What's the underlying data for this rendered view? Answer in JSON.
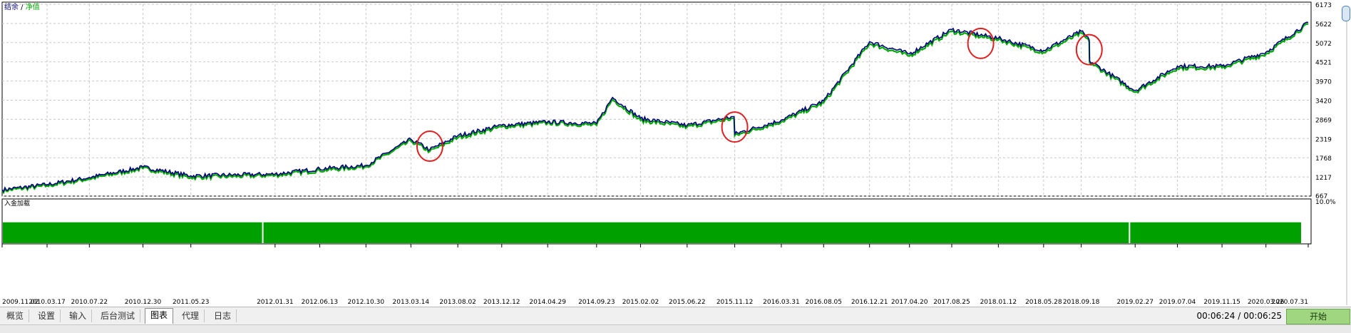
{
  "legend": {
    "balance_label": "结余",
    "separator": " / ",
    "equity_label": "净值"
  },
  "sub_panel": {
    "label": "入金加载",
    "top_value": "10.0%"
  },
  "colors": {
    "balance": "#000080",
    "equity": "#00aa00",
    "deposit_load": "#00a000",
    "circle": "#e02020"
  },
  "chart_data": [
    {
      "type": "line",
      "title": "",
      "series": [
        {
          "name": "结余",
          "color": "#000080",
          "x": [
            "2009.11.02",
            "2010.03.17",
            "2010.07.22",
            "2010.12.30",
            "2011.05.23",
            "2012.01.31",
            "2012.06.13",
            "2012.10.30",
            "2013.03.14",
            "2013.05.10",
            "2013.08.02",
            "2013.12.12",
            "2014.04.29",
            "2014.09.23",
            "2014.11.10",
            "2015.02.02",
            "2015.06.22",
            "2015.11.10",
            "2015.11.12",
            "2016.03.31",
            "2016.08.05",
            "2016.12.21",
            "2017.04.20",
            "2017.08.25",
            "2018.01.12",
            "2018.05.28",
            "2018.09.18",
            "2018.10.12",
            "2018.10.13",
            "2019.02.27",
            "2019.07.04",
            "2019.11.15",
            "2020.03.26",
            "2020.07.31"
          ],
          "values": [
            850,
            1000,
            1200,
            1500,
            1250,
            1300,
            1450,
            1550,
            2300,
            2000,
            2400,
            2700,
            2800,
            2750,
            3500,
            2900,
            2700,
            2950,
            2450,
            2850,
            3400,
            5100,
            4750,
            5450,
            5200,
            4850,
            5400,
            5150,
            4550,
            3700,
            4400,
            4400,
            4800,
            5650
          ]
        },
        {
          "name": "净值",
          "color": "#00aa00",
          "x": [
            "2009.11.02",
            "2010.03.17",
            "2010.07.22",
            "2010.12.30",
            "2011.05.23",
            "2012.01.31",
            "2012.06.13",
            "2012.10.30",
            "2013.03.14",
            "2013.05.10",
            "2013.08.02",
            "2013.12.12",
            "2014.04.29",
            "2014.09.23",
            "2014.11.10",
            "2015.02.02",
            "2015.06.22",
            "2015.11.10",
            "2015.11.12",
            "2016.03.31",
            "2016.08.05",
            "2016.12.21",
            "2017.04.20",
            "2017.08.25",
            "2018.01.12",
            "2018.05.28",
            "2018.09.18",
            "2018.10.12",
            "2018.10.13",
            "2019.02.27",
            "2019.07.04",
            "2019.11.15",
            "2020.03.26",
            "2020.07.31"
          ],
          "values": [
            820,
            960,
            1160,
            1460,
            1200,
            1260,
            1400,
            1510,
            2250,
            1950,
            2340,
            2650,
            2760,
            2700,
            3440,
            2840,
            2650,
            2900,
            2400,
            2800,
            3340,
            5040,
            4690,
            5390,
            5150,
            4790,
            5340,
            5100,
            4500,
            3650,
            4340,
            4350,
            4740,
            5600
          ]
        }
      ],
      "y_ticks": [
        667,
        1217,
        1768,
        2319,
        2869,
        3420,
        3970,
        4521,
        5072,
        5622,
        6173
      ],
      "ylim": [
        667,
        6173
      ],
      "x_ticks": [
        "2009.11.02",
        "2010.03.17",
        "2010.07.22",
        "2010.12.30",
        "2011.05.23",
        "2012.01.31",
        "2012.06.13",
        "2012.10.30",
        "2013.03.14",
        "2013.08.02",
        "2013.12.12",
        "2014.04.29",
        "2014.09.23",
        "2015.02.02",
        "2015.06.22",
        "2015.11.12",
        "2016.03.31",
        "2016.08.05",
        "2016.12.21",
        "2017.04.20",
        "2017.08.25",
        "2018.01.12",
        "2018.05.28",
        "2018.09.18",
        "2019.02.27",
        "2019.07.04",
        "2019.11.15",
        "2020.03.26",
        "2020.07.31"
      ],
      "grid": true,
      "annotations": [
        {
          "type": "circle",
          "date": "2013.05.10",
          "value": 2100
        },
        {
          "type": "circle",
          "date": "2015.11.12",
          "value": 2650
        },
        {
          "type": "circle",
          "date": "2017.11.20",
          "value": 5050
        },
        {
          "type": "circle",
          "date": "2018.10.12",
          "value": 4870
        }
      ]
    },
    {
      "type": "bar",
      "title": "入金加载",
      "ylim": [
        0,
        10.0
      ],
      "level": 4.8,
      "gap_dates": [
        "2011.12.25",
        "2019.02.10"
      ]
    }
  ],
  "tabs": [
    {
      "name": "tab-overview",
      "label": "概览"
    },
    {
      "name": "tab-settings",
      "label": "设置"
    },
    {
      "name": "tab-inputs",
      "label": "输入"
    },
    {
      "name": "tab-backtest",
      "label": "后台测试"
    },
    {
      "name": "tab-chart",
      "label": "图表",
      "active": true
    },
    {
      "name": "tab-agents",
      "label": "代理"
    },
    {
      "name": "tab-journal",
      "label": "日志"
    }
  ],
  "timer": {
    "elapsed": "00:06:24",
    "separator": " / ",
    "total": "00:06:25"
  },
  "start_button": {
    "label": "开始"
  }
}
